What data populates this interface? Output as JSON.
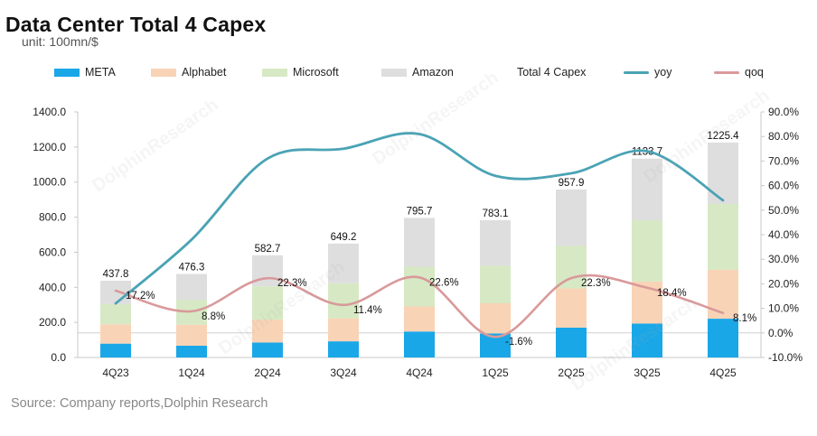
{
  "header": {
    "title": "Data Center Total 4 Capex",
    "unit": "unit: 100mn/$"
  },
  "footer": {
    "source": "Source: Company reports,Dolphin Research"
  },
  "watermark": "DolphinResearch",
  "colors": {
    "meta": "#1aa7e8",
    "alphabet": "#f9d3b6",
    "microsoft": "#d6e9c4",
    "amazon": "#dedede",
    "yoy": "#4aa3b5",
    "qoq": "#d9999a"
  },
  "chart_data": {
    "type": "bar",
    "stacked": true,
    "categories": [
      "4Q23",
      "1Q24",
      "2Q24",
      "3Q24",
      "4Q24",
      "1Q25",
      "2Q25",
      "3Q25",
      "4Q25"
    ],
    "series": [
      {
        "name": "META",
        "values": [
          79,
          67,
          85,
          92,
          148,
          137,
          170,
          193,
          221
        ]
      },
      {
        "name": "Alphabet",
        "values": [
          110,
          120,
          131,
          131,
          143,
          172,
          224,
          240,
          279
        ]
      },
      {
        "name": "Microsoft",
        "values": [
          115,
          140,
          190,
          200,
          226,
          214,
          242,
          349,
          375
        ]
      },
      {
        "name": "Amazon",
        "values": [
          133.8,
          149.3,
          176.7,
          226.2,
          278.7,
          260.1,
          321.9,
          351.7,
          350.4
        ]
      }
    ],
    "totals": {
      "name": "Total 4 Capex",
      "values": [
        437.8,
        476.3,
        582.7,
        649.2,
        795.7,
        783.1,
        957.9,
        1133.7,
        1225.4
      ],
      "labels": [
        "437.8",
        "476.3",
        "582.7",
        "649.2",
        "795.7",
        "783.1",
        "957.9",
        "1133.7",
        "1225.4"
      ]
    },
    "lines": [
      {
        "name": "yoy",
        "axis": "right",
        "values": [
          12,
          38,
          71,
          75,
          81,
          64,
          65,
          74,
          54
        ]
      },
      {
        "name": "qoq",
        "axis": "right",
        "values": [
          17.2,
          8.8,
          22.3,
          11.4,
          22.6,
          -1.6,
          22.3,
          18.4,
          8.1
        ],
        "labels": [
          "17.2%",
          "8.8%",
          "22.3%",
          "11.4%",
          "22.6%",
          "-1.6%",
          "22.3%",
          "18.4%",
          "8.1%"
        ]
      }
    ],
    "y_left": {
      "min": 0,
      "max": 1400,
      "step": 200,
      "ticks": [
        "0.0",
        "200.0",
        "400.0",
        "600.0",
        "800.0",
        "1000.0",
        "1200.0",
        "1400.0"
      ]
    },
    "y_right": {
      "min": -10,
      "max": 90,
      "step": 10,
      "ticks": [
        "-10.0%",
        "0.0%",
        "10.0%",
        "20.0%",
        "30.0%",
        "40.0%",
        "50.0%",
        "60.0%",
        "70.0%",
        "80.0%",
        "90.0%"
      ]
    },
    "grid": false,
    "legend_position": "top"
  }
}
